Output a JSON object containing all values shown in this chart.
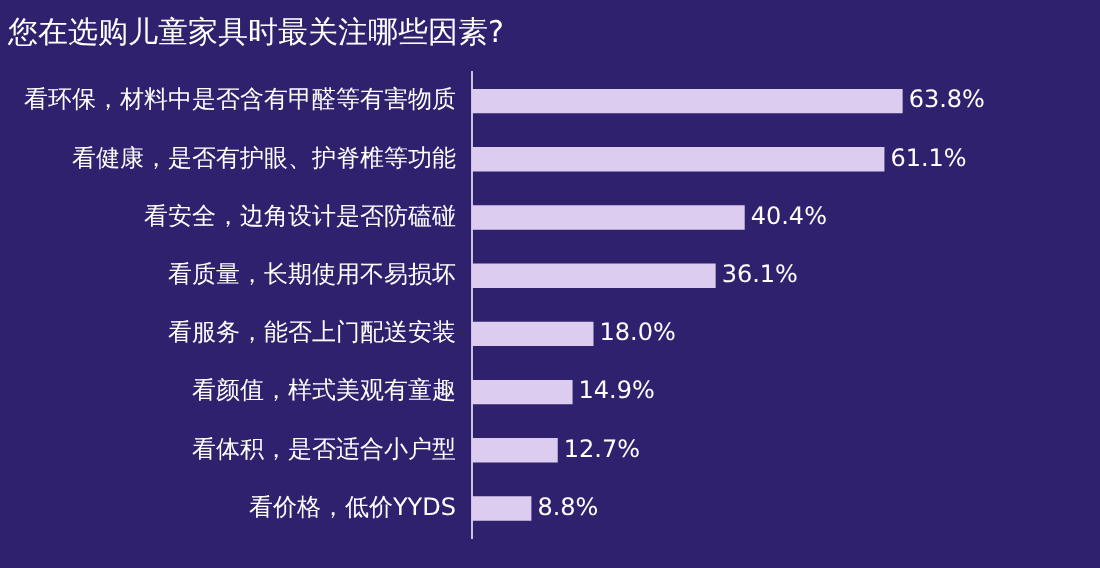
{
  "chart_data": {
    "type": "bar",
    "orientation": "horizontal",
    "title": "您在选购儿童家具时最关注哪些因素?",
    "categories": [
      "看环保，材料中是否含有甲醛等有害物质",
      "看健康，是否有护眼、护脊椎等功能",
      "看安全，边角设计是否防磕碰",
      "看质量，长期使用不易损坏",
      "看服务，能否上门配送安装",
      "看颜值，样式美观有童趣",
      "看体积，是否适合小户型",
      "看价格，低价YYDS"
    ],
    "values": [
      63.8,
      61.1,
      40.4,
      36.1,
      18.0,
      14.9,
      12.7,
      8.8
    ],
    "value_labels": [
      "63.8%",
      "61.1%",
      "40.4%",
      "36.1%",
      "18.0%",
      "14.9%",
      "12.7%",
      "8.8%"
    ],
    "color": "#dccdf0",
    "legend": false,
    "tick_labels": "y"
  }
}
